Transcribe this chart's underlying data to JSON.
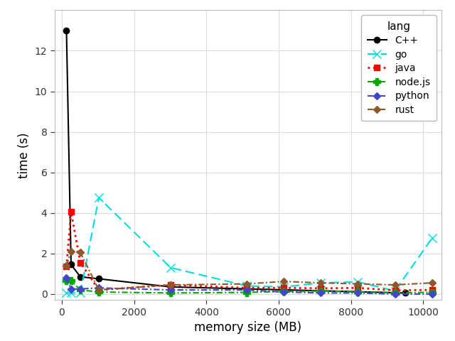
{
  "xlabel": "memory size (MB)",
  "ylabel": "time (s)",
  "xlim": [
    -200,
    10500
  ],
  "ylim": [
    -0.3,
    14.0
  ],
  "yticks": [
    0,
    2,
    4,
    6,
    8,
    10,
    12
  ],
  "xticks": [
    0,
    2000,
    4000,
    6000,
    8000,
    10000
  ],
  "series": {
    "C++": {
      "x": [
        128,
        256,
        512,
        1024,
        3008,
        9500
      ],
      "y": [
        13.0,
        1.45,
        0.85,
        0.75,
        0.35,
        0.05
      ],
      "color": "#000000",
      "linestyle": "-",
      "marker": "o",
      "markersize": 6,
      "linewidth": 1.5
    },
    "go": {
      "x": [
        128,
        256,
        512,
        1024,
        3008,
        5120,
        6144,
        7168,
        8192,
        9216,
        10240
      ],
      "y": [
        0.05,
        0.05,
        0.05,
        4.75,
        1.3,
        0.4,
        0.35,
        0.55,
        0.6,
        0.15,
        2.75
      ],
      "color": "#00FFFF",
      "linestyle": "--",
      "marker": "x",
      "markersize": 8,
      "linewidth": 1.5
    },
    "java": {
      "x": [
        128,
        256,
        512,
        1024,
        3008,
        5120,
        6144,
        7168,
        8192,
        9216,
        10240
      ],
      "y": [
        1.35,
        4.05,
        1.55,
        0.2,
        0.45,
        0.3,
        0.3,
        0.28,
        0.3,
        0.18,
        0.2
      ],
      "color": "#FF0000",
      "linestyle": ":",
      "marker": "s",
      "markersize": 6,
      "linewidth": 2.0
    },
    "node.js": {
      "x": [
        128,
        256,
        512,
        1024,
        3008,
        5120,
        6144,
        7168,
        8192,
        9216,
        10240
      ],
      "y": [
        0.65,
        0.65,
        0.2,
        0.1,
        0.05,
        0.08,
        0.12,
        0.15,
        0.1,
        0.06,
        0.08
      ],
      "color": "#00AA00",
      "linestyle": "--",
      "marker": "P",
      "markersize": 7,
      "linewidth": 1.5
    },
    "python": {
      "x": [
        128,
        256,
        512,
        1024,
        3008,
        5120,
        6144,
        7168,
        8192,
        9216,
        10240
      ],
      "y": [
        0.8,
        0.25,
        0.25,
        0.3,
        0.2,
        0.2,
        0.1,
        0.05,
        0.05,
        0.0,
        0.0
      ],
      "color": "#4444CC",
      "linestyle": "-.",
      "marker": "D",
      "markersize": 5,
      "linewidth": 1.5
    },
    "rust": {
      "x": [
        128,
        256,
        512,
        1024,
        3008,
        5120,
        6144,
        7168,
        8192,
        9216,
        10240
      ],
      "y": [
        1.4,
        2.1,
        2.05,
        0.2,
        0.45,
        0.5,
        0.62,
        0.55,
        0.5,
        0.45,
        0.55
      ],
      "color": "#8B5A2B",
      "linestyle": "-.",
      "marker": "D",
      "markersize": 5,
      "linewidth": 1.5
    }
  },
  "legend_title": "lang",
  "panel_background": "#FFFFFF",
  "fig_background": "#FFFFFF",
  "grid_color": "#DDDDDD",
  "grid_linewidth": 0.8
}
